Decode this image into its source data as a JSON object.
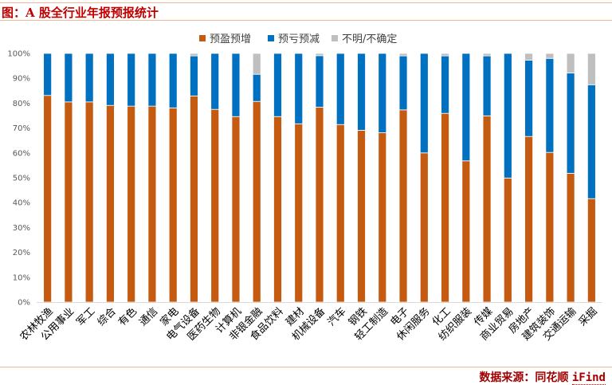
{
  "header": {
    "title": "图：A 股全行业年报预报统计"
  },
  "footer": {
    "label": "数据来源：",
    "source": "同花顺",
    "product": "iFind"
  },
  "colors": {
    "profit_up": "#c55a11",
    "loss_down": "#0070c0",
    "uncertain": "#bfbfbf",
    "rule": "#f0b890",
    "title": "#c00000"
  },
  "chart_data": {
    "type": "bar",
    "stacked": true,
    "title": "图：A 股全行业年报预报统计",
    "xlabel": "",
    "ylabel": "",
    "ylim": [
      0,
      100
    ],
    "yticks": [
      "0%",
      "10%",
      "20%",
      "30%",
      "40%",
      "50%",
      "60%",
      "70%",
      "80%",
      "90%",
      "100%"
    ],
    "grid": false,
    "legend_position": "top-center",
    "categories": [
      "农林牧渔",
      "公用事业",
      "军工",
      "综合",
      "有色",
      "通信",
      "家电",
      "电气设备",
      "医药生物",
      "计算机",
      "非银金融",
      "食品饮料",
      "建材",
      "机械设备",
      "汽车",
      "钢铁",
      "轻工制造",
      "电子",
      "休闲服务",
      "化工",
      "纺织服装",
      "传媒",
      "商业贸易",
      "房地产",
      "建筑装饰",
      "交通运输",
      "采掘"
    ],
    "series": [
      {
        "name": "预盈预增",
        "color": "#c55a11",
        "values": [
          83.1,
          80.5,
          80.5,
          79.1,
          78.8,
          78.8,
          78.1,
          82.9,
          77.5,
          74.6,
          80.7,
          74.6,
          71.7,
          78.4,
          71.4,
          69.1,
          68.1,
          77.3,
          60.0,
          75.9,
          56.8,
          74.9,
          49.9,
          66.6,
          60.2,
          51.8,
          41.6
        ]
      },
      {
        "name": "预亏预减",
        "color": "#0070c0",
        "values": [
          16.9,
          19.5,
          19.5,
          20.9,
          21.2,
          21.2,
          21.9,
          16.1,
          22.5,
          25.4,
          10.9,
          25.4,
          28.3,
          20.7,
          28.6,
          30.9,
          31.9,
          21.7,
          40.0,
          23.1,
          43.2,
          24.1,
          50.1,
          30.7,
          37.8,
          40.3,
          45.8
        ]
      },
      {
        "name": "不明/不确定",
        "color": "#bfbfbf",
        "values": [
          0,
          0,
          0,
          0,
          0,
          0,
          0,
          1.0,
          0,
          0,
          8.4,
          0,
          0,
          0.9,
          0,
          0,
          0,
          1.0,
          0,
          1.0,
          0,
          1.0,
          0,
          2.7,
          2.0,
          7.9,
          12.6
        ]
      }
    ]
  }
}
